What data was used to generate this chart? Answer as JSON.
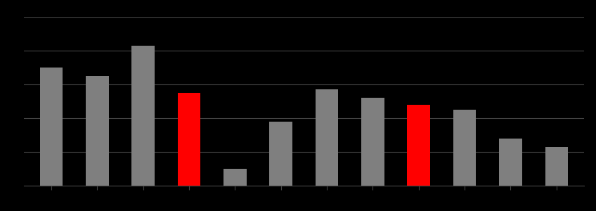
{
  "values": [
    70,
    65,
    83,
    55,
    10,
    38,
    57,
    52,
    48,
    45,
    28,
    23
  ],
  "colors": [
    "#7f7f7f",
    "#7f7f7f",
    "#7f7f7f",
    "#ff0000",
    "#7f7f7f",
    "#7f7f7f",
    "#7f7f7f",
    "#7f7f7f",
    "#ff0000",
    "#7f7f7f",
    "#7f7f7f",
    "#7f7f7f"
  ],
  "background_color": "#000000",
  "ylim": [
    0,
    100
  ],
  "grid_color": "#444444",
  "bar_width": 0.5,
  "n_bars": 12
}
